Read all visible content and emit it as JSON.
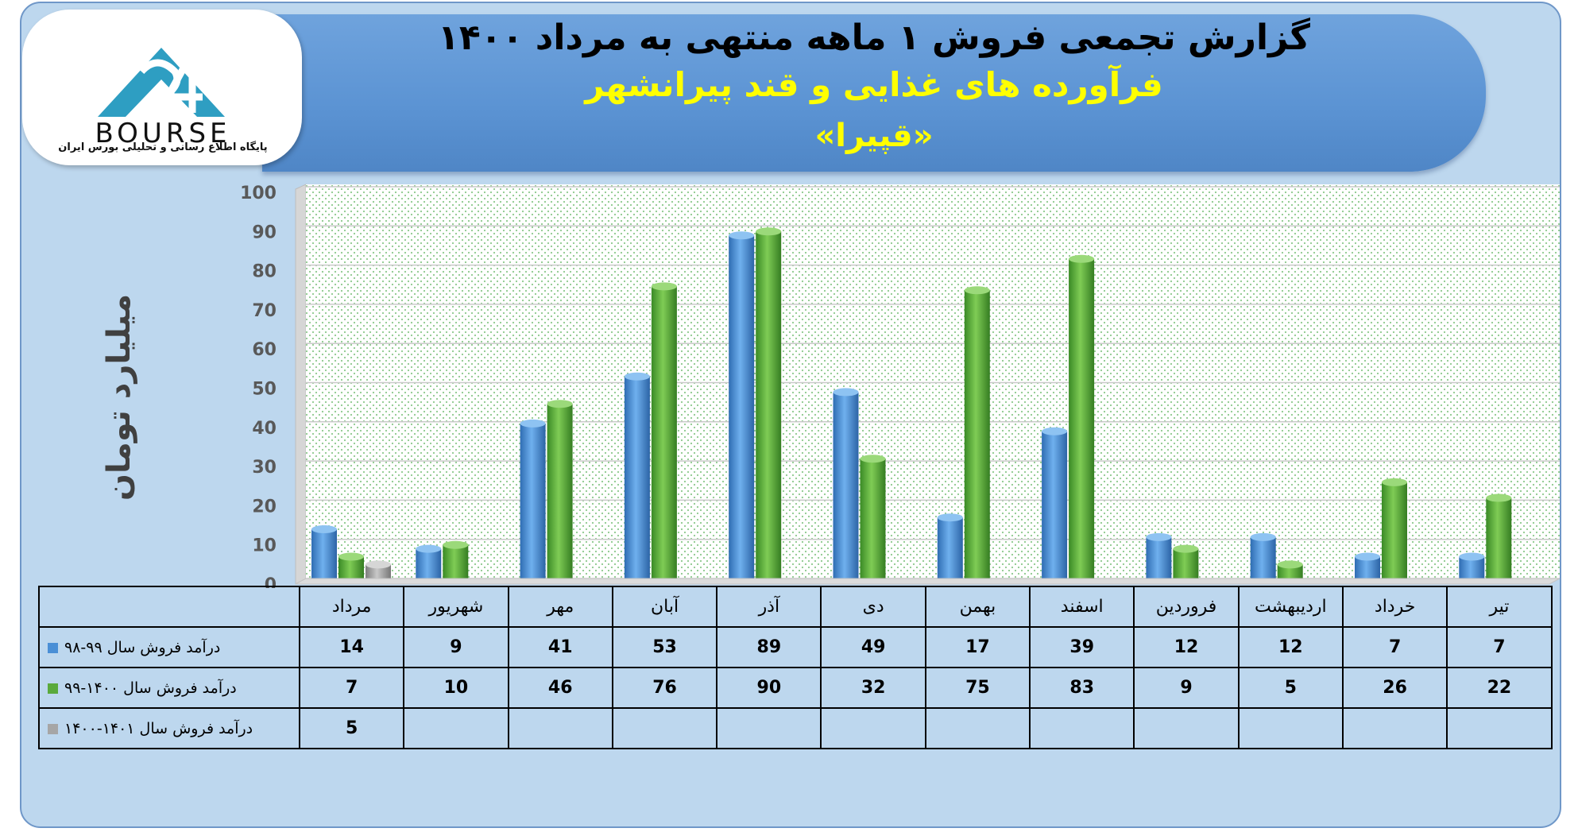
{
  "header": {
    "title_line1": "گزارش تجمعی فروش ۱ ماهه منتهی به مرداد ۱۴۰۰",
    "title_line2": "فرآورده های غذایی و قند پیرانشهر",
    "title_line3": "«قپیرا»",
    "title_color_main": "#000000",
    "title_color_sub": "#ffff00"
  },
  "logo": {
    "wordmark": "BOURSE",
    "number": "24",
    "tagline": "پایگاه اطلاع رسانی و تحلیلی بورس ایران",
    "color": "#2e9ec2"
  },
  "chart_data": {
    "type": "bar",
    "ylabel": "میلیارد تومان",
    "ylim": [
      0,
      100
    ],
    "yticks": [
      0,
      10,
      20,
      30,
      40,
      50,
      60,
      70,
      80,
      90,
      100
    ],
    "grid": true,
    "categories": [
      "مرداد",
      "شهریور",
      "مهر",
      "آبان",
      "آذر",
      "دی",
      "بهمن",
      "اسفند",
      "فروردین",
      "اردیبهشت",
      "خرداد",
      "تیر"
    ],
    "series": [
      {
        "name": "درآمد فروش سال ۹۹-۹۸",
        "color": "#4a8fd6",
        "values": [
          14,
          9,
          41,
          53,
          89,
          49,
          17,
          39,
          12,
          12,
          7,
          7
        ]
      },
      {
        "name": "درآمد فروش سال ۱۴۰۰-۹۹",
        "color": "#5aaa3c",
        "values": [
          7,
          10,
          46,
          76,
          90,
          32,
          75,
          83,
          9,
          5,
          26,
          22
        ]
      },
      {
        "name": "درآمد فروش سال ۱۴۰۱-۱۴۰۰",
        "color": "#a6a6a6",
        "values": [
          5,
          null,
          null,
          null,
          null,
          null,
          null,
          null,
          null,
          null,
          null,
          null
        ]
      }
    ]
  }
}
